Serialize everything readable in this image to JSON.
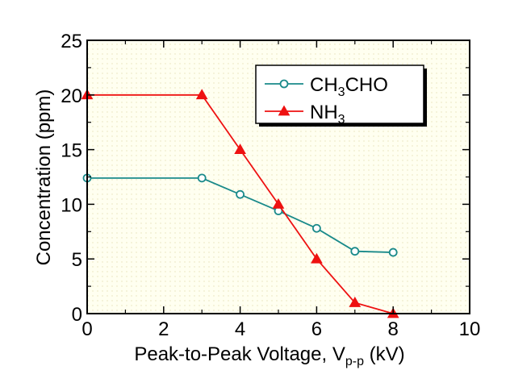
{
  "chart_data": {
    "type": "line",
    "title": "",
    "xlabel": "Peak-to-Peak Voltage, V",
    "xlabel_subscript": "p-p",
    "xlabel_suffix": " (kV)",
    "ylabel": "Concentration (ppm)",
    "xlim": [
      0,
      10
    ],
    "ylim": [
      0,
      25
    ],
    "x_ticks": [
      0,
      2,
      4,
      6,
      8,
      10
    ],
    "y_ticks": [
      0,
      5,
      10,
      15,
      20,
      25
    ],
    "grid": false,
    "background": "#fffff0",
    "legend_position": "top-right",
    "series": [
      {
        "name": "CH3CHO",
        "name_parts": [
          "CH",
          "3",
          "CHO"
        ],
        "color": "#1a8a8a",
        "marker": "open-circle",
        "x": [
          0,
          3,
          4,
          5,
          6,
          7,
          8
        ],
        "y": [
          12.4,
          12.4,
          10.9,
          9.4,
          7.8,
          5.7,
          5.6
        ]
      },
      {
        "name": "NH3",
        "name_parts": [
          "NH",
          "3",
          ""
        ],
        "color": "#ee1111",
        "marker": "filled-triangle",
        "x": [
          0,
          3,
          4,
          5,
          6,
          7,
          8
        ],
        "y": [
          20,
          20,
          15,
          10,
          5,
          1,
          0
        ]
      }
    ]
  }
}
